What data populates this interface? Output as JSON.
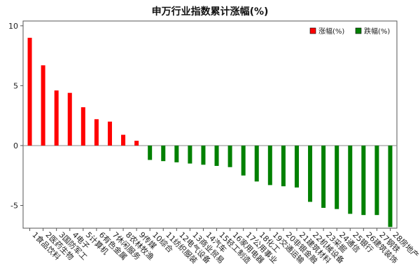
{
  "chart_data": {
    "type": "bar",
    "title": "申万行业指数累计涨幅(%)",
    "xlabel": "",
    "ylabel": "",
    "ylim": [
      -6.9,
      10.4
    ],
    "yticks": [
      -5,
      0,
      5,
      10
    ],
    "grid": false,
    "legend_position": "top-right",
    "categories": [
      "1食品饮料",
      "2医药生物",
      "3国防军工",
      "4电子",
      "5计算机",
      "6有色金属",
      "7休闲服务",
      "8农林牧渔",
      "9传媒",
      "10综合",
      "11纺织服装",
      "12电气设备",
      "13商业贸易",
      "14汽车",
      "15轻工制造",
      "16家用电器",
      "17公用事业",
      "18化工",
      "19交通运输",
      "20非银金融",
      "21建筑材料",
      "22机械设备",
      "23采掘",
      "24通信",
      "25银行",
      "26建筑装饰",
      "27钢铁",
      "28房地产"
    ],
    "values": [
      9.0,
      6.7,
      4.6,
      4.4,
      3.2,
      2.2,
      2.0,
      0.9,
      0.4,
      -1.2,
      -1.3,
      -1.4,
      -1.5,
      -1.6,
      -1.7,
      -1.8,
      -2.5,
      -3.0,
      -3.3,
      -3.4,
      -3.5,
      -4.7,
      -5.2,
      -5.3,
      -5.7,
      -5.8,
      -5.8,
      -6.8
    ],
    "legend": [
      {
        "name": "涨幅(%)",
        "color": "#ff0000"
      },
      {
        "name": "跌幅(%)",
        "color": "#008000"
      }
    ]
  }
}
